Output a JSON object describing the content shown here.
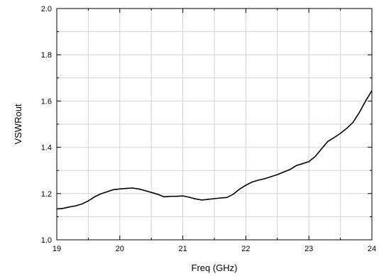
{
  "chart_data": {
    "type": "line",
    "xlabel": "Freq (GHz)",
    "ylabel": "VSWRout",
    "xlim": [
      19,
      24
    ],
    "ylim": [
      1.0,
      2.0
    ],
    "x_ticks": [
      "19",
      "20",
      "21",
      "22",
      "23",
      "24"
    ],
    "y_ticks": [
      "1.0",
      "1.2",
      "1.4",
      "1.6",
      "1.8",
      "2.0"
    ],
    "grid": true,
    "line_color": "#000000",
    "grid_color": "#d3d3d3",
    "series": [
      {
        "x": [
          19.0,
          19.1,
          19.2,
          19.3,
          19.4,
          19.5,
          19.6,
          19.7,
          19.8,
          19.9,
          20.0,
          20.1,
          20.2,
          20.3,
          20.4,
          20.5,
          20.6,
          20.7,
          20.8,
          20.9,
          21.0,
          21.1,
          21.2,
          21.3,
          21.4,
          21.5,
          21.6,
          21.7,
          21.8,
          21.9,
          22.0,
          22.1,
          22.2,
          22.3,
          22.4,
          22.5,
          22.6,
          22.7,
          22.8,
          22.9,
          23.0,
          23.1,
          23.2,
          23.3,
          23.4,
          23.5,
          23.6,
          23.7,
          23.8,
          23.9,
          24.0
        ],
        "y": [
          1.133,
          1.136,
          1.142,
          1.147,
          1.155,
          1.168,
          1.186,
          1.199,
          1.208,
          1.217,
          1.22,
          1.222,
          1.224,
          1.22,
          1.213,
          1.205,
          1.197,
          1.186,
          1.188,
          1.188,
          1.19,
          1.184,
          1.177,
          1.172,
          1.175,
          1.178,
          1.181,
          1.183,
          1.197,
          1.219,
          1.236,
          1.25,
          1.258,
          1.264,
          1.273,
          1.282,
          1.293,
          1.304,
          1.321,
          1.329,
          1.338,
          1.36,
          1.393,
          1.425,
          1.442,
          1.46,
          1.482,
          1.508,
          1.55,
          1.6,
          1.645
        ]
      }
    ]
  }
}
